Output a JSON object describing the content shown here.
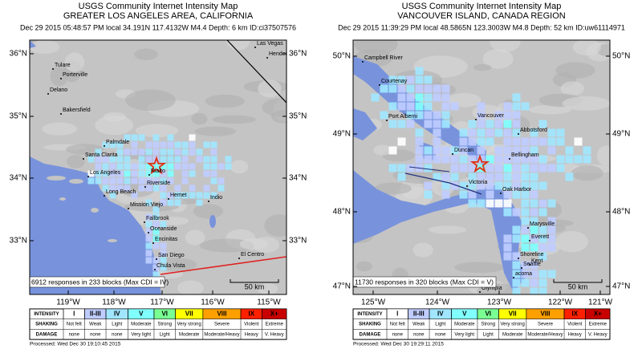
{
  "maps": [
    {
      "title": "USGS Community Internet Intensity Map",
      "region": "GREATER LOS ANGELES AREA, CALIFORNIA",
      "event": "Dec 29 2015 05:48:57 PM local 34.191N 117.4132W M4.4 Depth: 6 km ID:ci37507576",
      "lat_labels": [
        "36°N",
        "35°N",
        "34°N",
        "33°N"
      ],
      "lon_labels": [
        "119°W",
        "118°W",
        "117°W",
        "116°W",
        "115°W"
      ],
      "cities": [
        "Tulare",
        "Porterville",
        "Delano",
        "Bakersfield",
        "Las Vegas",
        "Hender",
        "Palmdale",
        "Santa Clarita",
        "Los Angeles",
        "Rialto",
        "Riverside",
        "Long Beach",
        "Hemet",
        "Indio",
        "Mission Viejo",
        "Fallbrook",
        "Oceanside",
        "Encinitas",
        "San Diego",
        "Chula Vista",
        "El Centro"
      ],
      "scale": "50 km",
      "responses": "6912 responses in 233 blocks (Max CDI = IV)",
      "processed": "Processed: Wed Dec 30 19:10:45 2015"
    },
    {
      "title": "USGS Community Internet Intensity Map",
      "region": "VANCOUVER ISLAND, CANADA REGION",
      "event": "Dec 29 2015 11:39:29 PM local 48.5865N 123.3003W M4.8 Depth: 52 km ID:uw61114971",
      "lat_labels": [
        "50°N",
        "49°N",
        "48°N",
        "47°N"
      ],
      "lon_labels": [
        "125°W",
        "124°W",
        "123°W",
        "122°W",
        "121°W"
      ],
      "cities": [
        "Campbell River",
        "Courtenay",
        "Port Alberni",
        "Vancouver",
        "Abbotsford",
        "Duncan",
        "Bellingham",
        "Victoria",
        "Oak Harbor",
        "Marysville",
        "Everett",
        "Shoreline",
        "Seattle",
        "Kent",
        "acoma",
        "Olympia"
      ],
      "scale": "50 km",
      "responses": "11730 responses in 320 blocks (Max CDI = V)",
      "processed": "Processed: Wed Dec 30 19:29:11 2015"
    }
  ],
  "legend": {
    "row_labels": [
      "INTENSITY",
      "SHAKING",
      "DAMAGE"
    ],
    "intensity": [
      "I",
      "II-III",
      "IV",
      "V",
      "VI",
      "VII",
      "VIII",
      "IX",
      "X+"
    ],
    "shaking": [
      "Not felt",
      "Weak",
      "Light",
      "Moderate",
      "Strong",
      "Very strong",
      "Severe",
      "Violent",
      "Extreme"
    ],
    "damage": [
      "none",
      "none",
      "none",
      "Very light",
      "Light",
      "Moderate",
      "Moderate/Heavy",
      "Heavy",
      "V. Heavy"
    ],
    "colors": [
      "#ffffff",
      "#bfccff",
      "#a0e6ff",
      "#80ffff",
      "#7aff93",
      "#ffff00",
      "#ffa000",
      "#ff2000",
      "#c80000"
    ]
  }
}
